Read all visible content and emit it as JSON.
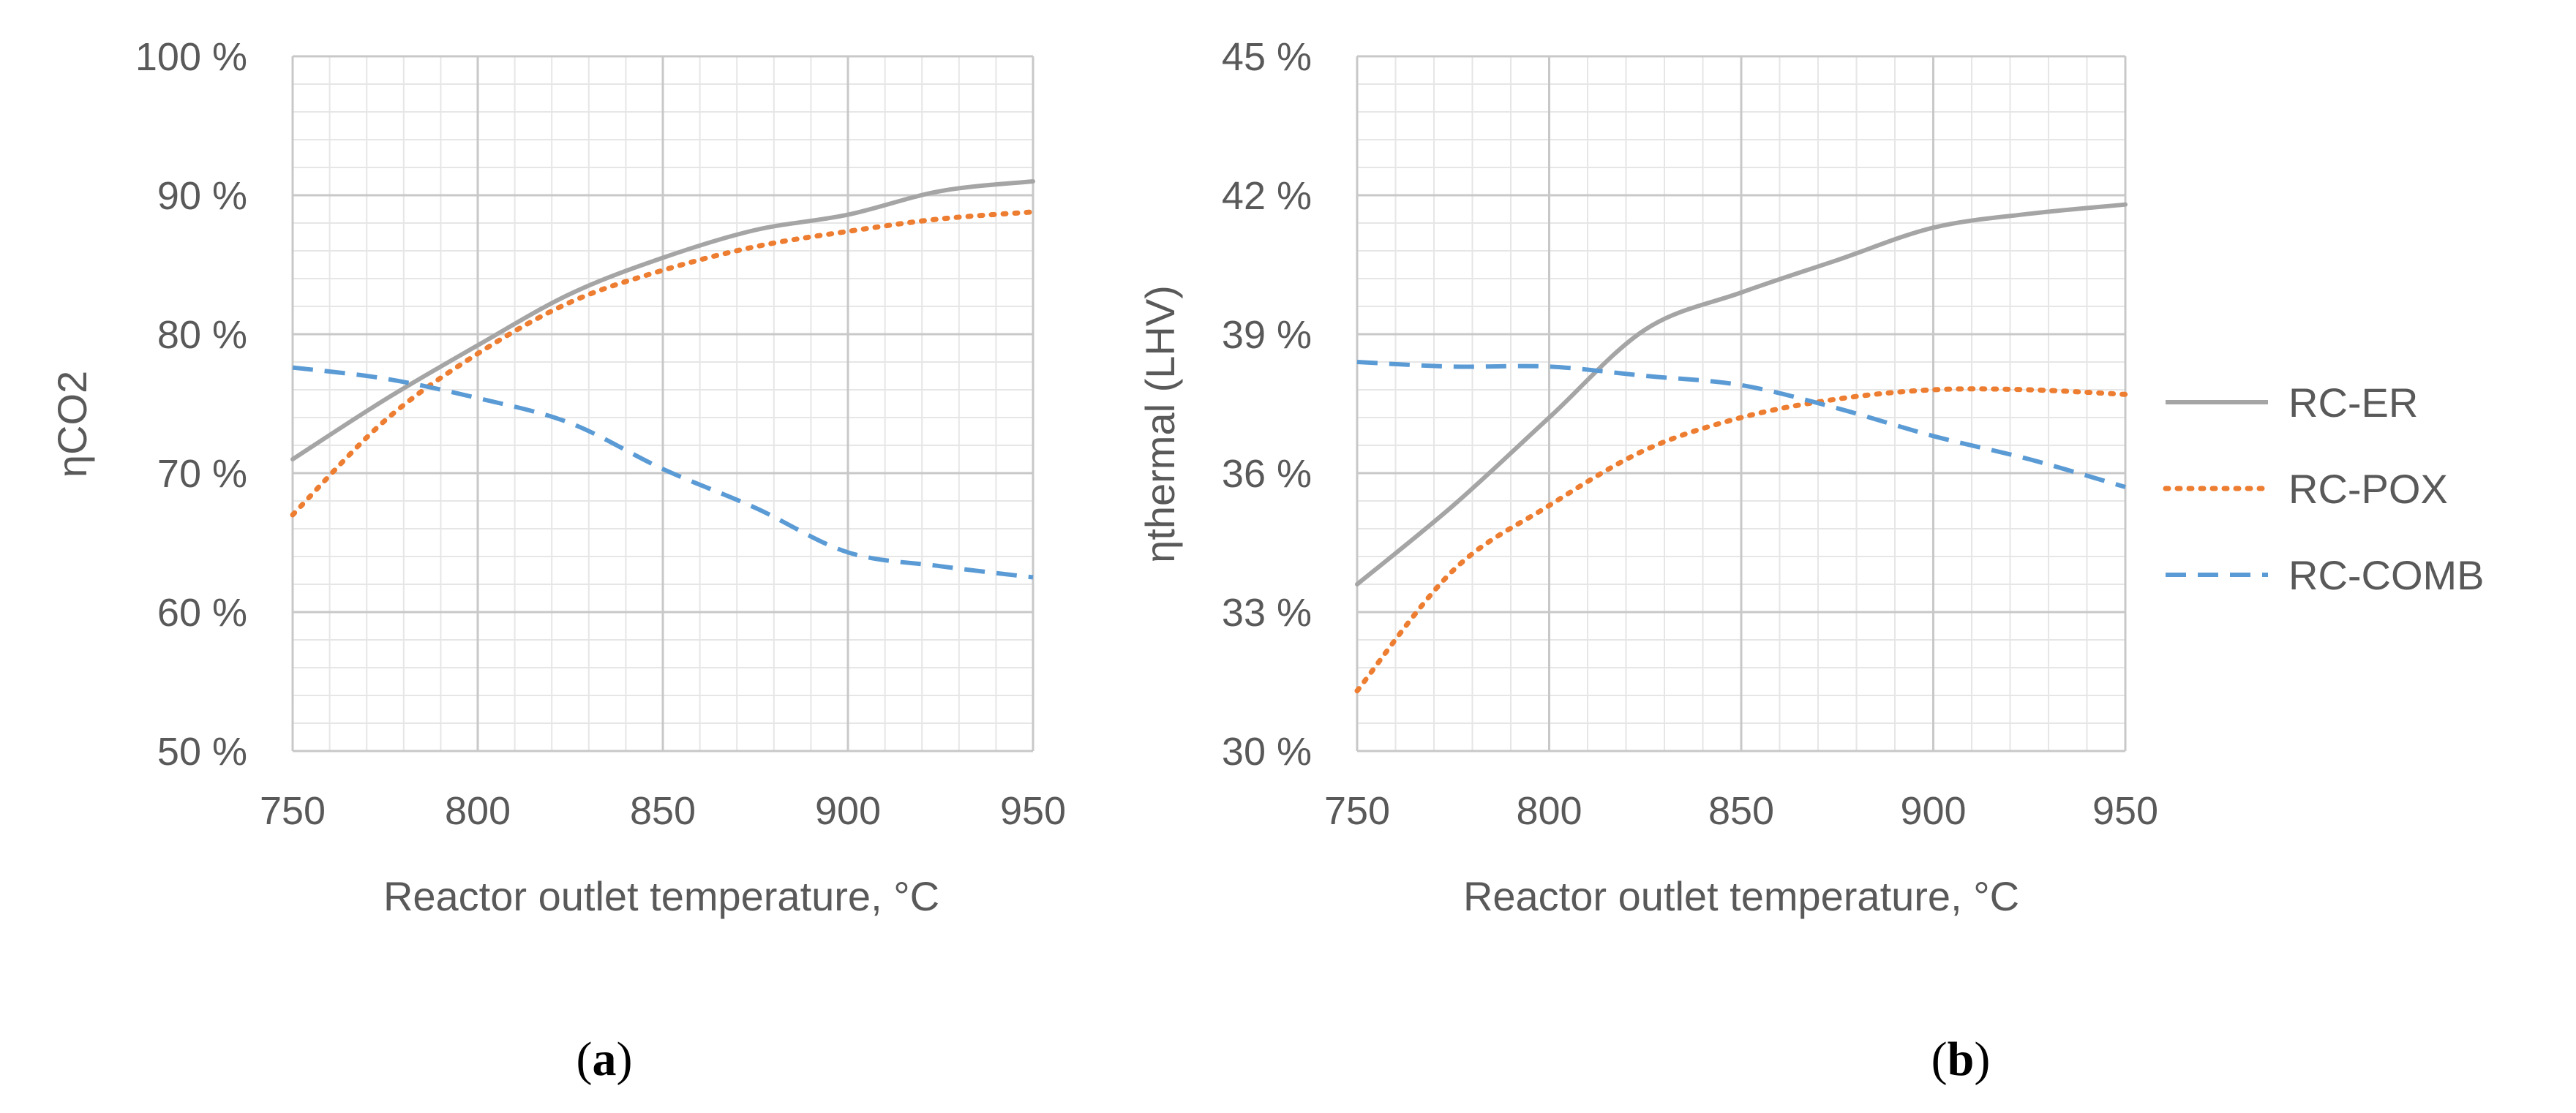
{
  "figure": {
    "captions": [
      "(a)",
      "(b)"
    ],
    "caption_letters": [
      "a",
      "b"
    ]
  },
  "colors": {
    "RC-ER": "#a5a5a5",
    "RC-POX": "#ed7d31",
    "RC-COMB": "#5b9bd5",
    "grid_major": "#c8c8c8",
    "grid_minor": "#e6e6e6",
    "text": "#595959"
  },
  "chart_data": [
    {
      "type": "line",
      "xlabel": "Reactor outlet temperature, °C",
      "ylabel": "ηCO2",
      "xlim": [
        750,
        950
      ],
      "ylim": [
        50,
        100
      ],
      "x_ticks": [
        750,
        800,
        850,
        900,
        950
      ],
      "x_tick_labels": [
        "750",
        "800",
        "850",
        "900",
        "950"
      ],
      "y_ticks": [
        50,
        60,
        70,
        80,
        90,
        100
      ],
      "y_tick_labels": [
        "50 %",
        "60 %",
        "70 %",
        "80 %",
        "90 %",
        "100 %"
      ],
      "grid": true,
      "series": [
        {
          "name": "RC-ER",
          "style": "solid",
          "x": [
            750,
            775,
            800,
            825,
            850,
            875,
            900,
            925,
            950
          ],
          "values": [
            71.0,
            75.3,
            79.2,
            82.9,
            85.5,
            87.5,
            88.6,
            90.3,
            91.0
          ]
        },
        {
          "name": "RC-POX",
          "style": "dotted",
          "x": [
            750,
            775,
            800,
            825,
            850,
            875,
            900,
            925,
            950
          ],
          "values": [
            67.0,
            73.8,
            78.6,
            82.3,
            84.6,
            86.3,
            87.4,
            88.3,
            88.8
          ]
        },
        {
          "name": "RC-COMB",
          "style": "dashed",
          "x": [
            750,
            775,
            800,
            825,
            850,
            875,
            900,
            925,
            950
          ],
          "values": [
            77.6,
            76.8,
            75.4,
            73.6,
            70.3,
            67.5,
            64.3,
            63.3,
            62.5
          ]
        }
      ]
    },
    {
      "type": "line",
      "xlabel": "Reactor outlet temperature, °C",
      "ylabel": "ηthermal (LHV)",
      "xlim": [
        750,
        950
      ],
      "ylim": [
        30,
        45
      ],
      "x_ticks": [
        750,
        800,
        850,
        900,
        950
      ],
      "x_tick_labels": [
        "750",
        "800",
        "850",
        "900",
        "950"
      ],
      "y_ticks": [
        30,
        33,
        36,
        39,
        42,
        45
      ],
      "y_tick_labels": [
        "30 %",
        "33 %",
        "36 %",
        "39 %",
        "42 %",
        "45 %"
      ],
      "grid": true,
      "legend": {
        "position": "right",
        "entries": [
          "RC-ER",
          "RC-POX",
          "RC-COMB"
        ]
      },
      "series": [
        {
          "name": "RC-ER",
          "style": "solid",
          "x": [
            750,
            775,
            800,
            825,
            850,
            875,
            900,
            925,
            950
          ],
          "values": [
            33.6,
            35.3,
            37.2,
            39.1,
            39.9,
            40.6,
            41.3,
            41.6,
            41.8
          ]
        },
        {
          "name": "RC-POX",
          "style": "dotted",
          "x": [
            750,
            775,
            800,
            825,
            850,
            875,
            900,
            925,
            950
          ],
          "values": [
            31.3,
            33.9,
            35.3,
            36.5,
            37.2,
            37.6,
            37.8,
            37.8,
            37.7
          ]
        },
        {
          "name": "RC-COMB",
          "style": "dashed",
          "x": [
            750,
            775,
            800,
            825,
            850,
            875,
            900,
            925,
            950
          ],
          "values": [
            38.4,
            38.3,
            38.3,
            38.1,
            37.9,
            37.4,
            36.8,
            36.3,
            35.7
          ]
        }
      ]
    }
  ]
}
